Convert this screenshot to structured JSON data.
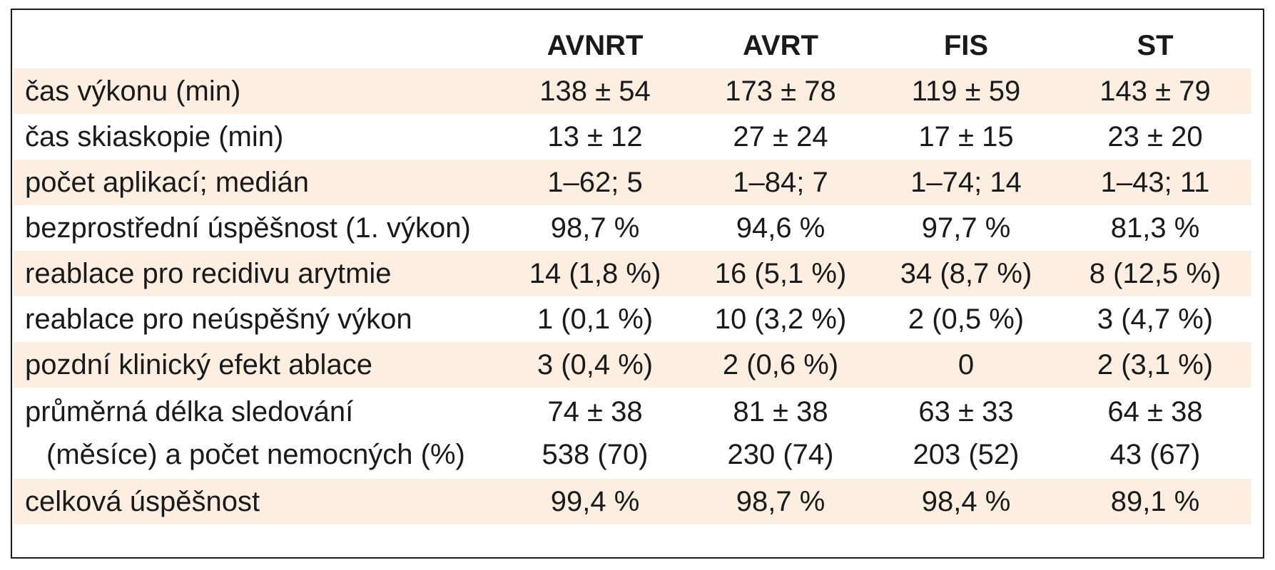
{
  "table": {
    "columns": [
      "",
      "AVNRT",
      "AVRT",
      "FIS",
      "ST"
    ],
    "rows": [
      {
        "label": [
          "čas výkonu (min)"
        ],
        "values": [
          [
            "138 ± 54"
          ],
          [
            "173 ± 78"
          ],
          [
            "119 ± 59"
          ],
          [
            "143 ± 79"
          ]
        ],
        "shaded": true
      },
      {
        "label": [
          "čas skiaskopie (min)"
        ],
        "values": [
          [
            "13 ± 12"
          ],
          [
            "27 ± 24"
          ],
          [
            "17 ± 15"
          ],
          [
            "23 ± 20"
          ]
        ],
        "shaded": false
      },
      {
        "label": [
          "počet aplikací; medián"
        ],
        "values": [
          [
            "1–62; 5"
          ],
          [
            "1–84; 7"
          ],
          [
            "1–74; 14"
          ],
          [
            "1–43; 11"
          ]
        ],
        "shaded": true
      },
      {
        "label": [
          "bezprostřední úspěšnost (1. výkon)"
        ],
        "values": [
          [
            "98,7 %"
          ],
          [
            "94,6 %"
          ],
          [
            "97,7 %"
          ],
          [
            "81,3 %"
          ]
        ],
        "shaded": false
      },
      {
        "label": [
          "reablace pro recidivu arytmie"
        ],
        "values": [
          [
            "14 (1,8 %)"
          ],
          [
            "16 (5,1 %)"
          ],
          [
            "34 (8,7 %)"
          ],
          [
            "8 (12,5 %)"
          ]
        ],
        "shaded": true
      },
      {
        "label": [
          "reablace pro neúspěšný výkon"
        ],
        "values": [
          [
            "1 (0,1 %)"
          ],
          [
            "10 (3,2 %)"
          ],
          [
            "2 (0,5 %)"
          ],
          [
            "3 (4,7 %)"
          ]
        ],
        "shaded": false
      },
      {
        "label": [
          "pozdní klinický efekt ablace"
        ],
        "values": [
          [
            "3 (0,4 %)"
          ],
          [
            "2 (0,6 %)"
          ],
          [
            "0"
          ],
          [
            "2 (3,1 %)"
          ]
        ],
        "shaded": true
      },
      {
        "label": [
          "průměrná délka sledování",
          "(měsíce) a počet nemocných (%)"
        ],
        "values": [
          [
            "74 ± 38",
            "538 (70)"
          ],
          [
            "81 ± 38",
            "230 (74)"
          ],
          [
            "63 ± 33",
            "203 (52)"
          ],
          [
            "64 ± 38",
            "43 (67)"
          ]
        ],
        "shaded": false
      },
      {
        "label": [
          "celková úspěšnost"
        ],
        "values": [
          [
            "99,4 %"
          ],
          [
            "98,7 %"
          ],
          [
            "98,4 %"
          ],
          [
            "89,1 %"
          ]
        ],
        "shaded": true
      }
    ]
  }
}
